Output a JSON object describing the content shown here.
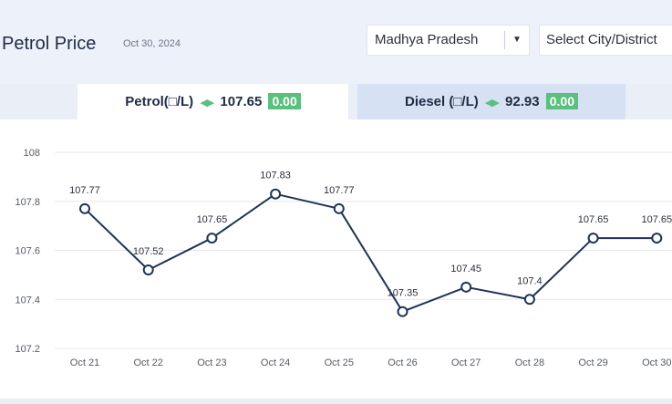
{
  "header": {
    "title": "Petrol Price",
    "date": "Oct 30, 2024",
    "state_select": "Madhya Pradesh",
    "city_select": "Select City/District"
  },
  "tabs": [
    {
      "label": "Petrol(□/L)",
      "arrows": "◀▶",
      "price": "107.65",
      "change": "0.00"
    },
    {
      "label": "Diesel (□/L)",
      "arrows": "◀▶",
      "price": "92.93",
      "change": "0.00"
    }
  ],
  "colors": {
    "accent_green": "#5bbf7e",
    "line": "#1f3358",
    "active_tab": "#ffffff",
    "inactive_tab": "#d7e1f4"
  },
  "chart_data": {
    "type": "line",
    "categories": [
      "Oct 21",
      "Oct 22",
      "Oct 23",
      "Oct 24",
      "Oct 25",
      "Oct 26",
      "Oct 27",
      "Oct 28",
      "Oct 29",
      "Oct 30"
    ],
    "series": [
      {
        "values": [
          107.77,
          107.52,
          107.65,
          107.83,
          107.77,
          107.35,
          107.45,
          107.4,
          107.65,
          107.65
        ]
      }
    ],
    "data_labels": [
      "107.77",
      "107.52",
      "107.65",
      "107.83",
      "107.77",
      "107.35",
      "107.45",
      "107.4",
      "107.65",
      "107.65"
    ],
    "yticks": [
      "108",
      "107.8",
      "107.6",
      "107.4",
      "107.2"
    ],
    "ytick_values": [
      108,
      107.8,
      107.6,
      107.4,
      107.2
    ],
    "ylim": [
      107.2,
      108
    ],
    "grid": true,
    "title": "",
    "xlabel": "",
    "ylabel": ""
  }
}
